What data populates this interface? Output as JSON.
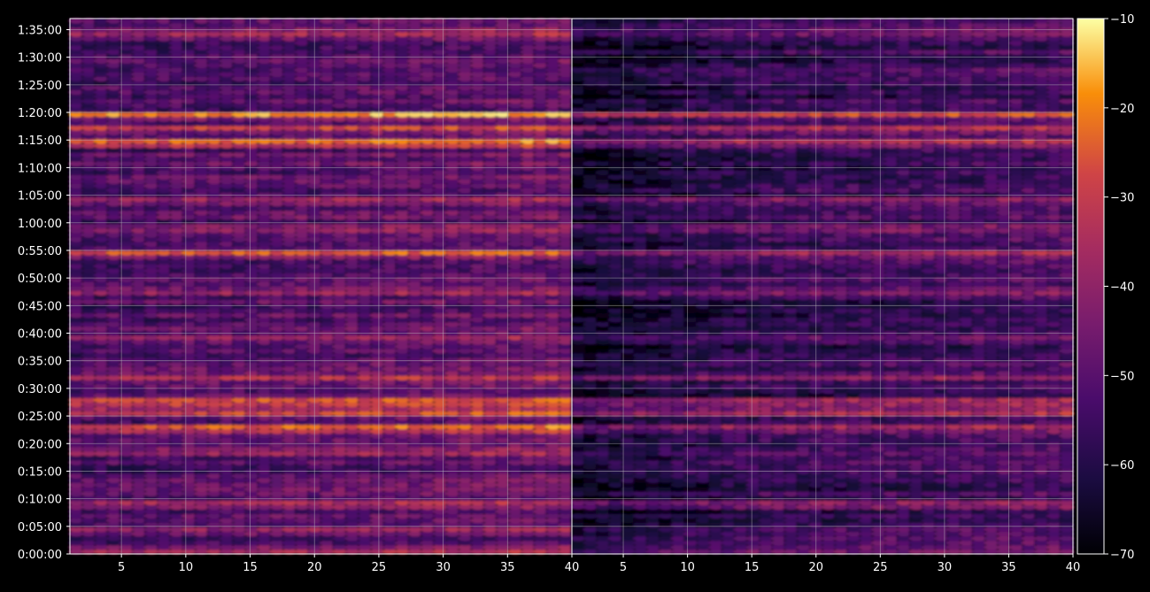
{
  "chart_data": {
    "type": "heatmap",
    "title": "",
    "panels": [
      {
        "name": "",
        "xlim": [
          1,
          40
        ],
        "ylim": [
          0,
          5820
        ]
      },
      {
        "name": "",
        "xlim": [
          1,
          40
        ],
        "ylim": [
          0,
          5820
        ]
      }
    ],
    "x_ticks": [
      5,
      10,
      15,
      20,
      25,
      30,
      35,
      40
    ],
    "y_tick_labels": [
      "0:00:00",
      "0:05:00",
      "0:10:00",
      "0:15:00",
      "0:20:00",
      "0:25:00",
      "0:30:00",
      "0:35:00",
      "0:40:00",
      "0:45:00",
      "0:50:00",
      "0:55:00",
      "1:00:00",
      "1:05:00",
      "1:10:00",
      "1:15:00",
      "1:20:00",
      "1:25:00",
      "1:30:00",
      "1:35:00"
    ],
    "colorbar": {
      "min": -70,
      "max": -10,
      "ticks": [
        "−70",
        "−60",
        "−50",
        "−40",
        "−30",
        "−20",
        "−10"
      ],
      "colormap": "inferno"
    },
    "grid": true,
    "bands_estimated": [
      {
        "t": "0:00:30",
        "left": -38,
        "right": -48
      },
      {
        "t": "0:04:30",
        "left": -42,
        "right": -55
      },
      {
        "t": "0:09:00",
        "left": -35,
        "right": -40
      },
      {
        "t": "0:18:30",
        "left": -38,
        "right": -52
      },
      {
        "t": "0:22:45",
        "left": -20,
        "right": -35
      },
      {
        "t": "0:25:45",
        "left": -25,
        "right": -32
      },
      {
        "t": "0:27:30",
        "left": -18,
        "right": -30
      },
      {
        "t": "0:32:00",
        "left": -35,
        "right": -42
      },
      {
        "t": "0:39:00",
        "left": -40,
        "right": -50
      },
      {
        "t": "0:47:30",
        "left": -40,
        "right": -45
      },
      {
        "t": "0:54:30",
        "left": -28,
        "right": -40
      },
      {
        "t": "0:59:00",
        "left": -38,
        "right": -45
      },
      {
        "t": "1:04:00",
        "left": -38,
        "right": -42
      },
      {
        "t": "1:14:30",
        "left": -18,
        "right": -32
      },
      {
        "t": "1:17:00",
        "left": -30,
        "right": -35
      },
      {
        "t": "1:19:30",
        "left": -20,
        "right": -30
      },
      {
        "t": "1:34:30",
        "left": -35,
        "right": -45
      }
    ]
  },
  "colors": {
    "background": "#000000",
    "axis": "#ffffff",
    "grid": "#bfbfbf"
  }
}
